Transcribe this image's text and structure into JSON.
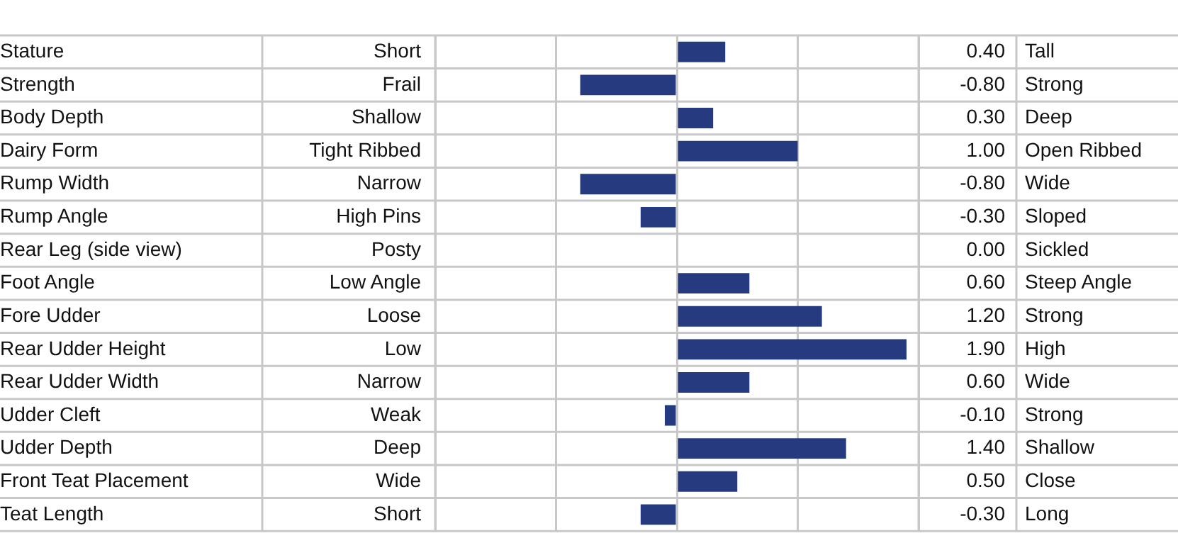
{
  "chart_data": {
    "type": "bar",
    "orientation": "horizontal",
    "categories": [
      "Stature",
      "Strength",
      "Body Depth",
      "Dairy Form",
      "Rump Width",
      "Rump Angle",
      "Rear Leg (side view)",
      "Foot Angle",
      "Fore Udder",
      "Rear Udder Height",
      "Rear Udder Width",
      "Udder Cleft",
      "Udder Depth",
      "Front Teat Placement",
      "Teat Length"
    ],
    "values": [
      0.4,
      -0.8,
      0.3,
      1.0,
      -0.8,
      -0.3,
      0.0,
      0.6,
      1.2,
      1.9,
      0.6,
      -0.1,
      1.4,
      0.5,
      -0.3
    ],
    "value_labels": [
      "0.40",
      "-0.80",
      "0.30",
      "1.00",
      "-0.80",
      "-0.30",
      "0.00",
      "0.60",
      "1.20",
      "1.90",
      "0.60",
      "-0.10",
      "1.40",
      "0.50",
      "-0.30"
    ],
    "color": "#263a80",
    "xlim": [
      -2,
      2
    ],
    "tick_labels": "y",
    "grid": "x",
    "annotations": [
      "Short",
      "Tall",
      "Frail",
      "Strong",
      "Shallow",
      "Deep",
      "Tight Ribbed",
      "Open Ribbed",
      "Narrow",
      "Wide",
      "High Pins",
      "Sloped",
      "Posty",
      "Sickled",
      "Low Angle",
      "Steep Angle",
      "Loose",
      "Strong",
      "Low",
      "High",
      "Narrow",
      "Wide",
      "Weak",
      "Strong",
      "Deep",
      "Shallow",
      "Wide",
      "Close",
      "Short",
      "Long"
    ]
  }
}
